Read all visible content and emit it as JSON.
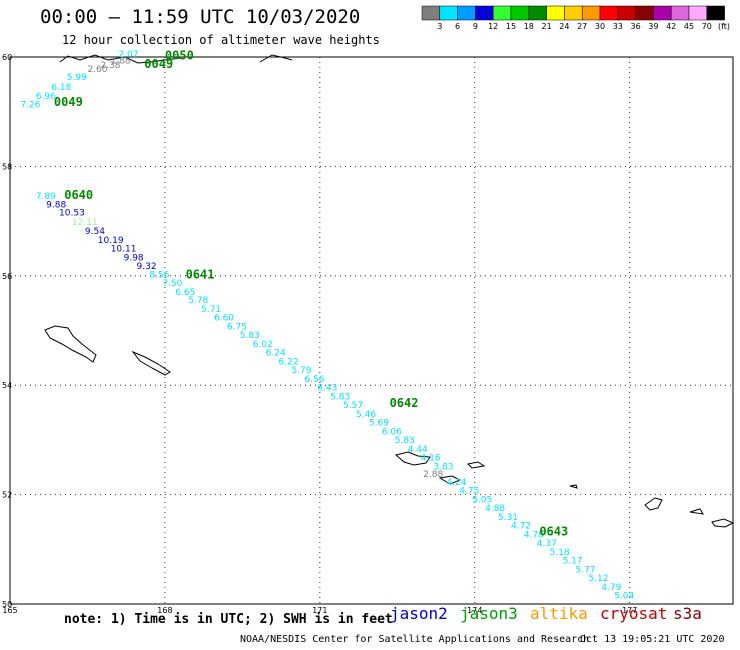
{
  "header": {
    "title": "00:00 – 11:59 UTC 10/03/2020",
    "subtitle": "12 hour collection of altimeter wave heights"
  },
  "legend": {
    "units": "(ft)",
    "items": [
      {
        "label": "3",
        "color": "#7f7f7f"
      },
      {
        "label": "6",
        "color": "#00e5ff"
      },
      {
        "label": "9",
        "color": "#009dff"
      },
      {
        "label": "12",
        "color": "#0000d8"
      },
      {
        "label": "15",
        "color": "#33ff33"
      },
      {
        "label": "18",
        "color": "#00c800"
      },
      {
        "label": "21",
        "color": "#008a00"
      },
      {
        "label": "24",
        "color": "#ffff00"
      },
      {
        "label": "27",
        "color": "#ffcc00"
      },
      {
        "label": "30",
        "color": "#ff9900"
      },
      {
        "label": "33",
        "color": "#ff0000"
      },
      {
        "label": "36",
        "color": "#c80000"
      },
      {
        "label": "39",
        "color": "#8a0000"
      },
      {
        "label": "42",
        "color": "#aa00aa"
      },
      {
        "label": "45",
        "color": "#dd66dd"
      },
      {
        "label": "70",
        "color": "#ffaaff"
      },
      {
        "label": "",
        "color": "#000000"
      }
    ]
  },
  "map": {
    "lon_range": [
      165,
      179
    ],
    "lat_range": [
      50,
      60
    ],
    "lon_ticks": [
      "165",
      "168",
      "171",
      "174",
      "177"
    ],
    "lat_ticks": [
      "50",
      "52",
      "54",
      "56",
      "58",
      "60"
    ],
    "grid": true,
    "time_labels": [
      {
        "text": "0050",
        "lon": 168.0,
        "lat": 59.95
      },
      {
        "text": "0049",
        "lon": 167.6,
        "lat": 59.8
      },
      {
        "text": "0049",
        "lon": 165.85,
        "lat": 59.1
      },
      {
        "text": "0640",
        "lon": 166.05,
        "lat": 57.4
      },
      {
        "text": "0641",
        "lon": 168.4,
        "lat": 55.95
      },
      {
        "text": "0642",
        "lon": 172.35,
        "lat": 53.6
      },
      {
        "text": "0643",
        "lon": 175.25,
        "lat": 51.25
      }
    ],
    "track_points": [
      {
        "v": "2.07",
        "lon": 167.1,
        "lat": 60.0,
        "c": "#00e5ff"
      },
      {
        "v": "1.88",
        "lon": 166.95,
        "lat": 59.88,
        "c": "#7f7f7f"
      },
      {
        "v": "2.38",
        "lon": 166.75,
        "lat": 59.8,
        "c": "#7f7f7f"
      },
      {
        "v": "2.60",
        "lon": 166.5,
        "lat": 59.73,
        "c": "#7f7f7f"
      },
      {
        "v": "5.99",
        "lon": 166.1,
        "lat": 59.58,
        "c": "#00e5ff"
      },
      {
        "v": "6.18",
        "lon": 165.8,
        "lat": 59.4,
        "c": "#00e5ff"
      },
      {
        "v": "6.96",
        "lon": 165.5,
        "lat": 59.23,
        "c": "#00e5ff"
      },
      {
        "v": "7.26",
        "lon": 165.2,
        "lat": 59.08,
        "c": "#00e5ff"
      },
      {
        "v": "7.89",
        "lon": 165.5,
        "lat": 57.4,
        "c": "#00e5ff"
      },
      {
        "v": "9.88",
        "lon": 165.7,
        "lat": 57.25,
        "c": "#0000d8"
      },
      {
        "v": "10.53",
        "lon": 165.95,
        "lat": 57.1,
        "c": "#0000d8"
      },
      {
        "v": "12.11",
        "lon": 166.2,
        "lat": 56.93,
        "c": "#99ee99"
      },
      {
        "v": "9.54",
        "lon": 166.45,
        "lat": 56.76,
        "c": "#0000d8"
      },
      {
        "v": "10.19",
        "lon": 166.7,
        "lat": 56.6,
        "c": "#0000d8"
      },
      {
        "v": "10.11",
        "lon": 166.95,
        "lat": 56.44,
        "c": "#0000d8"
      },
      {
        "v": "9.98",
        "lon": 167.2,
        "lat": 56.28,
        "c": "#0000d8"
      },
      {
        "v": "9.32",
        "lon": 167.45,
        "lat": 56.12,
        "c": "#0000d8"
      },
      {
        "v": "8.56",
        "lon": 167.7,
        "lat": 55.97,
        "c": "#00e5ff"
      },
      {
        "v": "7.50",
        "lon": 167.95,
        "lat": 55.81,
        "c": "#00e5ff"
      },
      {
        "v": "6.65",
        "lon": 168.2,
        "lat": 55.65,
        "c": "#00e5ff"
      },
      {
        "v": "5.78",
        "lon": 168.45,
        "lat": 55.5,
        "c": "#00e5ff"
      },
      {
        "v": "5.71",
        "lon": 168.7,
        "lat": 55.34,
        "c": "#00e5ff"
      },
      {
        "v": "6.60",
        "lon": 168.95,
        "lat": 55.18,
        "c": "#00e5ff"
      },
      {
        "v": "6.75",
        "lon": 169.2,
        "lat": 55.02,
        "c": "#00e5ff"
      },
      {
        "v": "5.83",
        "lon": 169.45,
        "lat": 54.86,
        "c": "#00e5ff"
      },
      {
        "v": "6.02",
        "lon": 169.7,
        "lat": 54.7,
        "c": "#00e5ff"
      },
      {
        "v": "6.24",
        "lon": 169.95,
        "lat": 54.54,
        "c": "#00e5ff"
      },
      {
        "v": "6.22",
        "lon": 170.2,
        "lat": 54.38,
        "c": "#00e5ff"
      },
      {
        "v": "5.79",
        "lon": 170.45,
        "lat": 54.22,
        "c": "#00e5ff"
      },
      {
        "v": "6.56",
        "lon": 170.7,
        "lat": 54.06,
        "c": "#00e5ff"
      },
      {
        "v": "6.43",
        "lon": 170.95,
        "lat": 53.9,
        "c": "#00e5ff"
      },
      {
        "v": "5.83",
        "lon": 171.2,
        "lat": 53.74,
        "c": "#00e5ff"
      },
      {
        "v": "5.57",
        "lon": 171.45,
        "lat": 53.58,
        "c": "#00e5ff"
      },
      {
        "v": "5.46",
        "lon": 171.7,
        "lat": 53.42,
        "c": "#00e5ff"
      },
      {
        "v": "5.69",
        "lon": 171.95,
        "lat": 53.26,
        "c": "#00e5ff"
      },
      {
        "v": "6.06",
        "lon": 172.2,
        "lat": 53.1,
        "c": "#00e5ff"
      },
      {
        "v": "5.83",
        "lon": 172.45,
        "lat": 52.94,
        "c": "#00e5ff"
      },
      {
        "v": "4.44",
        "lon": 172.7,
        "lat": 52.78,
        "c": "#00e5ff"
      },
      {
        "v": "4.16",
        "lon": 172.95,
        "lat": 52.62,
        "c": "#00e5ff"
      },
      {
        "v": "3.83",
        "lon": 173.2,
        "lat": 52.46,
        "c": "#00e5ff"
      },
      {
        "v": "2.88",
        "lon": 173.0,
        "lat": 52.32,
        "c": "#7f7f7f"
      },
      {
        "v": "4.24",
        "lon": 173.45,
        "lat": 52.18,
        "c": "#00e5ff"
      },
      {
        "v": "4.75",
        "lon": 173.7,
        "lat": 52.02,
        "c": "#00e5ff"
      },
      {
        "v": "5.05",
        "lon": 173.95,
        "lat": 51.86,
        "c": "#00e5ff"
      },
      {
        "v": "4.88",
        "lon": 174.2,
        "lat": 51.7,
        "c": "#00e5ff"
      },
      {
        "v": "5.31",
        "lon": 174.45,
        "lat": 51.54,
        "c": "#00e5ff"
      },
      {
        "v": "4.72",
        "lon": 174.7,
        "lat": 51.38,
        "c": "#00e5ff"
      },
      {
        "v": "4.78",
        "lon": 174.95,
        "lat": 51.22,
        "c": "#00e5ff"
      },
      {
        "v": "4.37",
        "lon": 175.2,
        "lat": 51.06,
        "c": "#00e5ff"
      },
      {
        "v": "5.18",
        "lon": 175.45,
        "lat": 50.9,
        "c": "#00e5ff"
      },
      {
        "v": "5.17",
        "lon": 175.7,
        "lat": 50.74,
        "c": "#00e5ff"
      },
      {
        "v": "5.77",
        "lon": 175.95,
        "lat": 50.58,
        "c": "#00e5ff"
      },
      {
        "v": "5.12",
        "lon": 176.2,
        "lat": 50.42,
        "c": "#00e5ff"
      },
      {
        "v": "4.79",
        "lon": 176.45,
        "lat": 50.26,
        "c": "#00e5ff"
      },
      {
        "v": "5.04",
        "lon": 176.7,
        "lat": 50.1,
        "c": "#00e5ff"
      }
    ]
  },
  "footer": {
    "note": "note: 1) Time is in UTC; 2) SWH is in feet",
    "satellites": [
      {
        "name": "jason2",
        "color": "#0000d8"
      },
      {
        "name": "jason3",
        "color": "#00a000"
      },
      {
        "name": "altika",
        "color": "#ff9900"
      },
      {
        "name": "cryosat",
        "color": "#c80000"
      },
      {
        "name": "s3a",
        "color": "#8a0000"
      }
    ],
    "credit": "NOAA/NESDIS Center for Satellite Applications and Research",
    "timestamp": "Oct 13 19:05:21 UTC 2020"
  }
}
